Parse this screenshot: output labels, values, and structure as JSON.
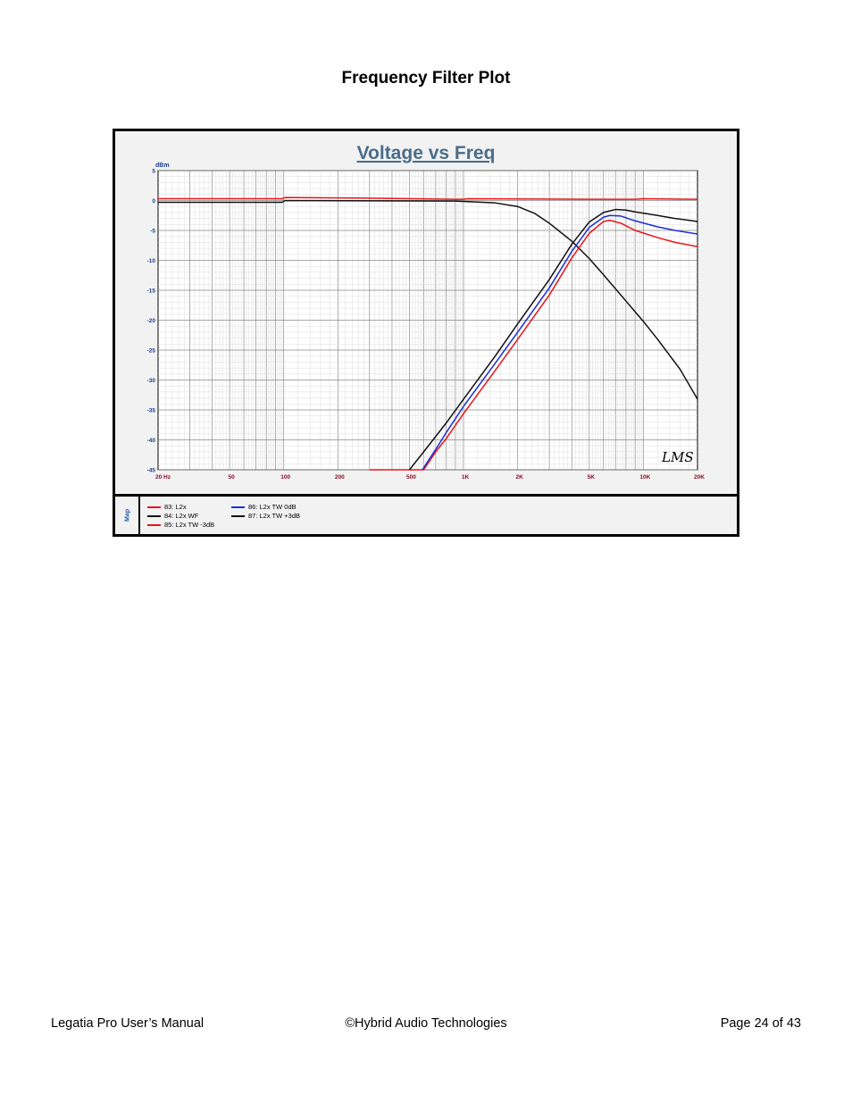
{
  "page": {
    "title": "Frequency Filter Plot",
    "footer": {
      "left": "Legatia Pro User’s Manual",
      "center": "©Hybrid Audio Technologies",
      "right": "Page 24 of 43"
    }
  },
  "chart_data": {
    "type": "line",
    "title": "Voltage vs Freq",
    "ylabel": "dBm",
    "xlabel": "",
    "x_scale": "log",
    "xlim": [
      20,
      20000
    ],
    "ylim": [
      -45,
      5
    ],
    "grid": true,
    "yticks": [
      5,
      0,
      -5,
      -10,
      -15,
      -20,
      -25,
      -30,
      -35,
      -40,
      -45
    ],
    "xticks": [
      {
        "value": 20,
        "label": "20  Hz"
      },
      {
        "value": 50,
        "label": "50"
      },
      {
        "value": 100,
        "label": "100"
      },
      {
        "value": 200,
        "label": "200"
      },
      {
        "value": 500,
        "label": "500"
      },
      {
        "value": 1000,
        "label": "1K"
      },
      {
        "value": 2000,
        "label": "2K"
      },
      {
        "value": 5000,
        "label": "5K"
      },
      {
        "value": 10000,
        "label": "10K"
      },
      {
        "value": 20000,
        "label": "20K"
      }
    ],
    "watermark": "LMS",
    "legend_title": "Map",
    "legend_position": "bottom",
    "colors": {
      "red": "#e8141a",
      "black": "#111111",
      "blue": "#1a2fd6",
      "axis_text": "#1f3d8a",
      "tick_text": "#8b0a2a",
      "title": "#4a6d8a"
    },
    "series": [
      {
        "name": "83: L2x",
        "color": "#e8141a",
        "points": [
          [
            20,
            0.3
          ],
          [
            60,
            0.3
          ],
          [
            98,
            0.3
          ],
          [
            102,
            0.5
          ],
          [
            300,
            0.4
          ],
          [
            900,
            0.2
          ],
          [
            1000,
            0.2
          ],
          [
            1050,
            0.3
          ],
          [
            5000,
            0.2
          ],
          [
            9000,
            0.2
          ],
          [
            10000,
            0.3
          ],
          [
            20000,
            0.2
          ]
        ]
      },
      {
        "name": "84: L2x WF",
        "color": "#111111",
        "points": [
          [
            20,
            -0.3
          ],
          [
            98,
            -0.3
          ],
          [
            102,
            0.0
          ],
          [
            900,
            -0.1
          ],
          [
            1500,
            -0.4
          ],
          [
            2000,
            -1.0
          ],
          [
            2500,
            -2.2
          ],
          [
            3000,
            -3.8
          ],
          [
            4000,
            -6.8
          ],
          [
            5000,
            -9.7
          ],
          [
            6000,
            -12.4
          ],
          [
            8000,
            -16.8
          ],
          [
            10000,
            -20.2
          ],
          [
            12000,
            -23.2
          ],
          [
            16000,
            -28.2
          ],
          [
            20000,
            -33.2
          ]
        ]
      },
      {
        "name": "85: L2x TW -3dB",
        "color": "#e8141a",
        "points": [
          [
            300,
            -45
          ],
          [
            400,
            -45
          ],
          [
            600,
            -45
          ],
          [
            700,
            -42
          ],
          [
            800,
            -39.8
          ],
          [
            1000,
            -35.6
          ],
          [
            1500,
            -28.4
          ],
          [
            2000,
            -23.2
          ],
          [
            3000,
            -15.8
          ],
          [
            4000,
            -9.6
          ],
          [
            5000,
            -5.5
          ],
          [
            6000,
            -3.5
          ],
          [
            6500,
            -3.3
          ],
          [
            7500,
            -3.8
          ],
          [
            9000,
            -5.0
          ],
          [
            12000,
            -6.2
          ],
          [
            15000,
            -7.0
          ],
          [
            20000,
            -7.7
          ]
        ]
      },
      {
        "name": "86: L2x TW  0dB",
        "color": "#1a2fd6",
        "points": [
          [
            590,
            -45
          ],
          [
            700,
            -41.6
          ],
          [
            800,
            -38.8
          ],
          [
            1000,
            -34.4
          ],
          [
            1500,
            -27.2
          ],
          [
            2000,
            -22.0
          ],
          [
            3000,
            -14.6
          ],
          [
            4000,
            -8.5
          ],
          [
            5000,
            -4.5
          ],
          [
            6000,
            -2.8
          ],
          [
            6500,
            -2.5
          ],
          [
            7500,
            -2.6
          ],
          [
            9000,
            -3.4
          ],
          [
            12000,
            -4.4
          ],
          [
            15000,
            -5.0
          ],
          [
            20000,
            -5.6
          ]
        ]
      },
      {
        "name": "87: L2x TW  +3dB",
        "color": "#111111",
        "points": [
          [
            500,
            -45
          ],
          [
            600,
            -42.0
          ],
          [
            800,
            -37.2
          ],
          [
            1000,
            -33.2
          ],
          [
            1500,
            -26.0
          ],
          [
            2000,
            -20.6
          ],
          [
            3000,
            -13.2
          ],
          [
            4000,
            -7.3
          ],
          [
            5000,
            -3.6
          ],
          [
            6000,
            -2.0
          ],
          [
            7000,
            -1.5
          ],
          [
            8000,
            -1.6
          ],
          [
            9000,
            -1.9
          ],
          [
            12000,
            -2.5
          ],
          [
            15000,
            -3.0
          ],
          [
            20000,
            -3.5
          ]
        ]
      }
    ]
  }
}
